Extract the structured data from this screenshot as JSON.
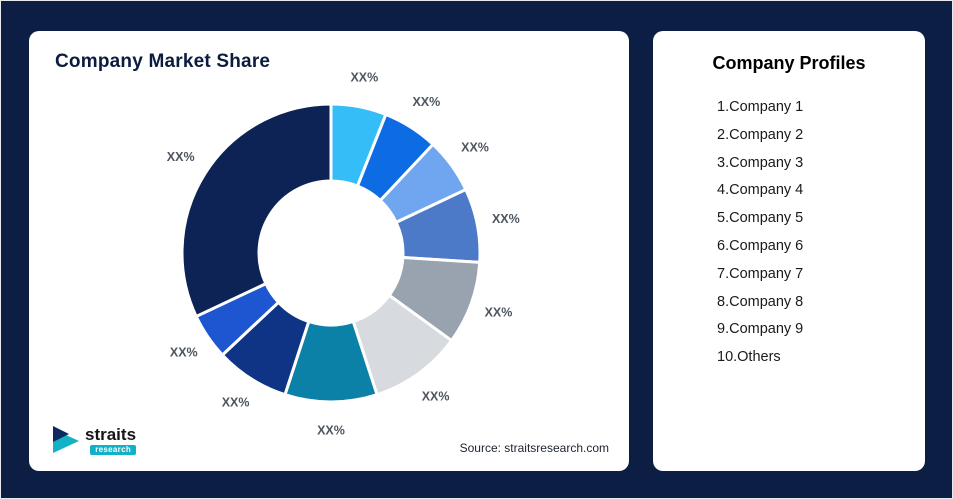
{
  "page": {
    "background": "#0d1e44"
  },
  "market_share_card": {
    "title": "Company Market Share",
    "source_note": "Source: straitsresearch.com",
    "logo": {
      "brand": "straits",
      "sub_brand": "research",
      "teal": "#12b2c6",
      "navy": "#0d2a5e"
    }
  },
  "profiles_card": {
    "title": "Company Profiles",
    "items": [
      "1.Company 1",
      "2.Company 2",
      "3.Company 3",
      "4.Company 4",
      "5.Company 5",
      "6.Company 6",
      "7.Company 7",
      "8.Company 8",
      "9.Company 9",
      "10.Others"
    ]
  },
  "chart_data": {
    "type": "pie",
    "variant": "donut",
    "title": "Company Market Share",
    "legend": "none",
    "start_angle_deg": 0,
    "direction": "clockwise",
    "segments": [
      {
        "name": "Company 1",
        "label": "XX%",
        "value": 6,
        "color": "#35bdf8"
      },
      {
        "name": "Company 2",
        "label": "XX%",
        "value": 6,
        "color": "#0d6ce4"
      },
      {
        "name": "Company 3",
        "label": "XX%",
        "value": 6,
        "color": "#6fa6ef"
      },
      {
        "name": "Company 4",
        "label": "XX%",
        "value": 8,
        "color": "#4d7ac8"
      },
      {
        "name": "Company 5",
        "label": "XX%",
        "value": 9,
        "color": "#99a2af"
      },
      {
        "name": "Company 6",
        "label": "XX%",
        "value": 10,
        "color": "#d7dade"
      },
      {
        "name": "Company 7",
        "label": "XX%",
        "value": 10,
        "color": "#0b81a8"
      },
      {
        "name": "Company 8",
        "label": "XX%",
        "value": 8,
        "color": "#0f3486"
      },
      {
        "name": "Company 9",
        "label": "XX%",
        "value": 5,
        "color": "#1e55d0"
      },
      {
        "name": "Others",
        "label": "XX%",
        "value": 32,
        "color": "#0e2355"
      }
    ]
  }
}
